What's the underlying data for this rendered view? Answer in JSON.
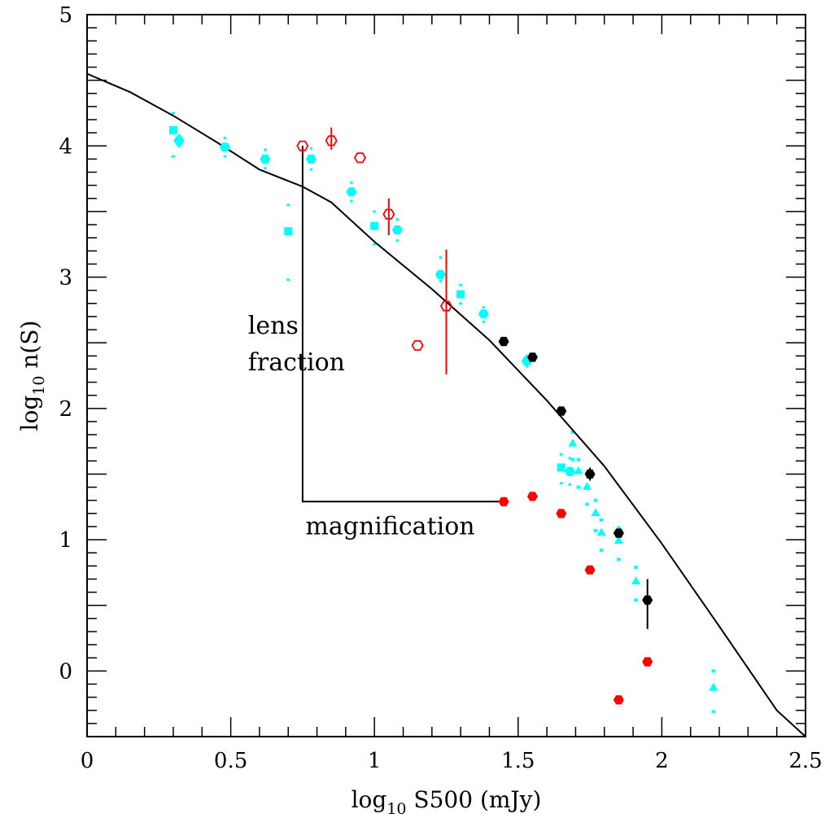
{
  "chart_data": {
    "type": "scatter",
    "title": "",
    "xlabel": {
      "prefix": "log",
      "sub": "10",
      "main": " S500   (mJy)"
    },
    "ylabel": {
      "prefix": "log",
      "sub": "10",
      "main": " n(S)"
    },
    "xlim": [
      0,
      2.5
    ],
    "ylim": [
      -0.5,
      5
    ],
    "xticks": [
      0,
      0.5,
      1,
      1.5,
      2,
      2.5
    ],
    "xtick_labels": [
      "0",
      "0.5",
      "1",
      "1.5",
      "2",
      "2.5"
    ],
    "yticks": [
      0,
      1,
      2,
      3,
      4,
      5
    ],
    "ytick_labels": [
      "0",
      "1",
      "2",
      "3",
      "4",
      "5"
    ],
    "grid": false,
    "legend": "none",
    "colors": {
      "cyan": "#00ffff",
      "red": "#ff0000",
      "black": "#000000"
    },
    "series": [
      {
        "marker": "curve",
        "color": "#000000",
        "points": [
          [
            0,
            4.55
          ],
          [
            0.15,
            4.41
          ],
          [
            0.3,
            4.23
          ],
          [
            0.45,
            4.03
          ],
          [
            0.6,
            3.82
          ],
          [
            0.75,
            3.69
          ],
          [
            0.85,
            3.57
          ],
          [
            1.0,
            3.27
          ],
          [
            1.2,
            2.91
          ],
          [
            1.4,
            2.52
          ],
          [
            1.6,
            2.06
          ],
          [
            1.8,
            1.56
          ],
          [
            2.0,
            0.97
          ],
          [
            2.2,
            0.34
          ],
          [
            2.4,
            -0.3
          ],
          [
            2.5,
            -0.5
          ]
        ]
      },
      {
        "marker": "filled-hexagon",
        "color": "#00ffff",
        "points": [
          [
            0.32,
            4.04
          ],
          [
            0.48,
            3.99
          ],
          [
            0.62,
            3.9
          ],
          [
            0.78,
            3.9
          ],
          [
            0.92,
            3.65
          ],
          [
            1.08,
            3.36
          ],
          [
            1.23,
            3.02
          ],
          [
            1.38,
            2.72
          ],
          [
            1.53,
            2.36
          ],
          [
            1.68,
            1.52
          ]
        ],
        "err_low": [
          0.04,
          0.07,
          0.07,
          0.08,
          0.07,
          0.08,
          0.05,
          0.06,
          0.04,
          0.1
        ],
        "err_high": [
          0.04,
          0.07,
          0.07,
          0.08,
          0.07,
          0.08,
          0.13,
          0.05,
          0.04,
          0.1
        ]
      },
      {
        "marker": "filled-square",
        "color": "#00ffff",
        "points": [
          [
            0.3,
            4.12
          ],
          [
            0.7,
            3.35
          ],
          [
            1.0,
            3.39
          ],
          [
            1.3,
            2.87
          ],
          [
            1.65,
            1.55
          ]
        ],
        "err_low": [
          0.2,
          0.37,
          0.14,
          0.07,
          0.12
        ],
        "err_high": [
          0.13,
          0.2,
          0.11,
          0.07,
          0.1
        ]
      },
      {
        "marker": "filled-triangle",
        "color": "#00ffff",
        "points": [
          [
            1.69,
            1.73
          ],
          [
            1.71,
            1.52
          ],
          [
            1.74,
            1.4
          ],
          [
            1.77,
            1.2
          ],
          [
            1.79,
            1.05
          ],
          [
            1.85,
            0.99
          ],
          [
            1.91,
            0.68
          ],
          [
            2.18,
            -0.13
          ]
        ],
        "err_low": [
          0.12,
          0.12,
          0.13,
          0.13,
          0.13,
          0.14,
          0.14,
          0.18
        ],
        "err_high": [
          0.09,
          0.09,
          0.1,
          0.1,
          0.1,
          0.1,
          0.11,
          0.13
        ]
      },
      {
        "marker": "filled-hexagon",
        "color": "#000000",
        "points": [
          [
            1.45,
            2.51
          ],
          [
            1.55,
            2.39
          ],
          [
            1.65,
            1.98
          ],
          [
            1.75,
            1.5
          ],
          [
            1.85,
            1.05
          ],
          [
            1.95,
            0.54
          ]
        ],
        "err_low": [
          0.0,
          0.0,
          0.0,
          0.05,
          0.0,
          0.22
        ],
        "err_high": [
          0.0,
          0.0,
          0.0,
          0.05,
          0.0,
          0.16
        ]
      },
      {
        "marker": "open-hexagon",
        "color": "#ff0000",
        "points": [
          [
            0.75,
            4.0
          ],
          [
            0.85,
            4.04
          ],
          [
            0.95,
            3.91
          ],
          [
            1.05,
            3.48
          ],
          [
            1.15,
            2.48
          ],
          [
            1.25,
            2.78
          ]
        ],
        "err_low": [
          0.0,
          0.07,
          0.0,
          0.16,
          0.0,
          0.52
        ],
        "err_high": [
          0.0,
          0.1,
          0.0,
          0.12,
          0.0,
          0.43
        ]
      },
      {
        "marker": "filled-hexagon",
        "color": "#ff0000",
        "points": [
          [
            1.45,
            1.29
          ],
          [
            1.55,
            1.33
          ],
          [
            1.65,
            1.2
          ],
          [
            1.75,
            0.77
          ],
          [
            1.85,
            -0.22
          ],
          [
            1.95,
            0.07
          ]
        ]
      }
    ],
    "annotations": [
      {
        "text": "lens",
        "x": 0.56,
        "y": 2.57
      },
      {
        "text": "fraction",
        "x": 0.56,
        "y": 2.29
      },
      {
        "text": "magnification",
        "x": 0.76,
        "y": 1.04
      }
    ],
    "bracket": {
      "points": [
        [
          0.75,
          4.0
        ],
        [
          0.75,
          1.29
        ],
        [
          1.45,
          1.29
        ]
      ]
    }
  }
}
